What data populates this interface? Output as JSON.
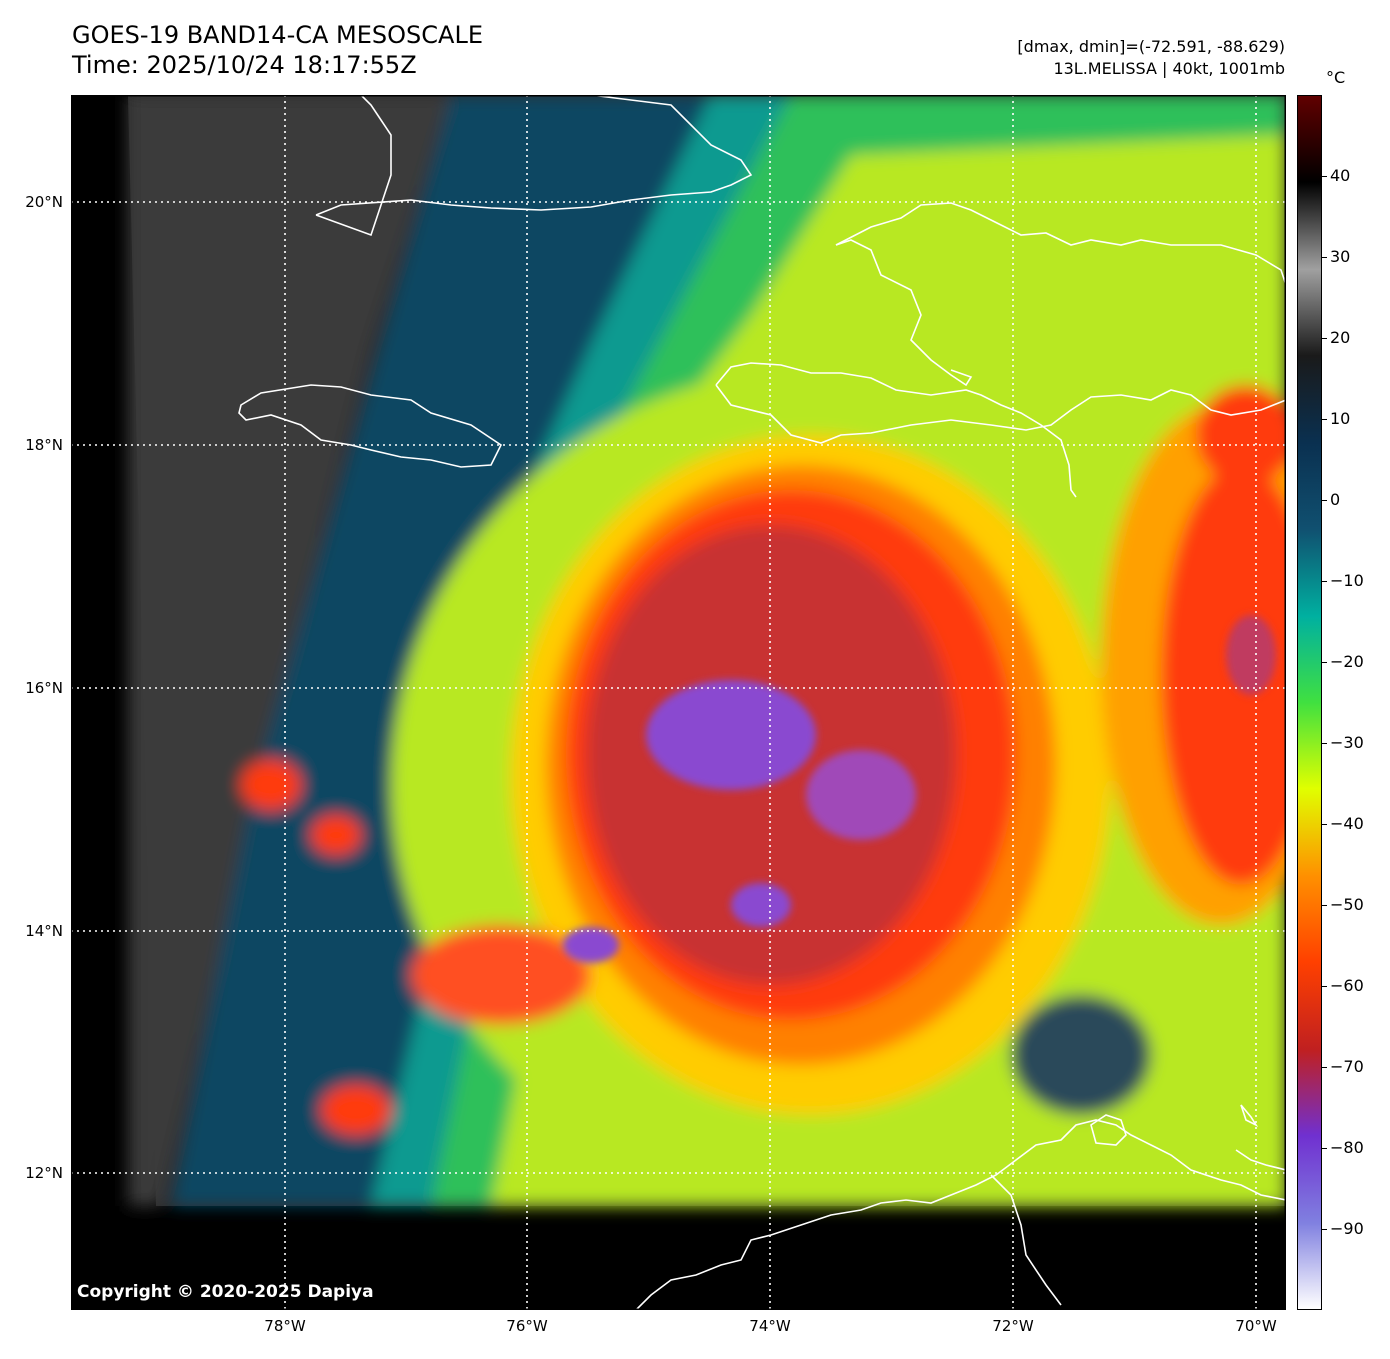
{
  "header": {
    "title_line1": "GOES-19 BAND14-CA MESOSCALE",
    "title_line2": "Time: 2025/10/24 18:17:55Z",
    "stats_line": "[dmax, dmin]=(-72.591, -88.629)",
    "storm_line": "13L.MELISSA | 40kt, 1001mb"
  },
  "map": {
    "lat_labels": [
      "20°N",
      "18°N",
      "16°N",
      "14°N",
      "12°N"
    ],
    "lon_labels": [
      "78°W",
      "76°W",
      "74°W",
      "72°W",
      "70°W"
    ],
    "copyright": "Copyright © 2020-2025 Dapiya",
    "gridlines": "dotted white",
    "coastline_color": "#ffffff"
  },
  "colorbar": {
    "unit": "°C",
    "tick_labels": [
      "40",
      "30",
      "20",
      "10",
      "0",
      "−10",
      "−20",
      "−30",
      "−40",
      "−50",
      "−60",
      "−70",
      "−80",
      "−90"
    ],
    "range": [
      -100,
      50
    ],
    "colors": [
      "#ffffff",
      "#8080e0",
      "#7030d0",
      "#c02020",
      "#ff4000",
      "#ff9000",
      "#e0ff00",
      "#40e040",
      "#00b0a0",
      "#105070",
      "#0a3050",
      "#1a1a1a",
      "#a0a0a0",
      "#000000",
      "#600000"
    ]
  }
}
